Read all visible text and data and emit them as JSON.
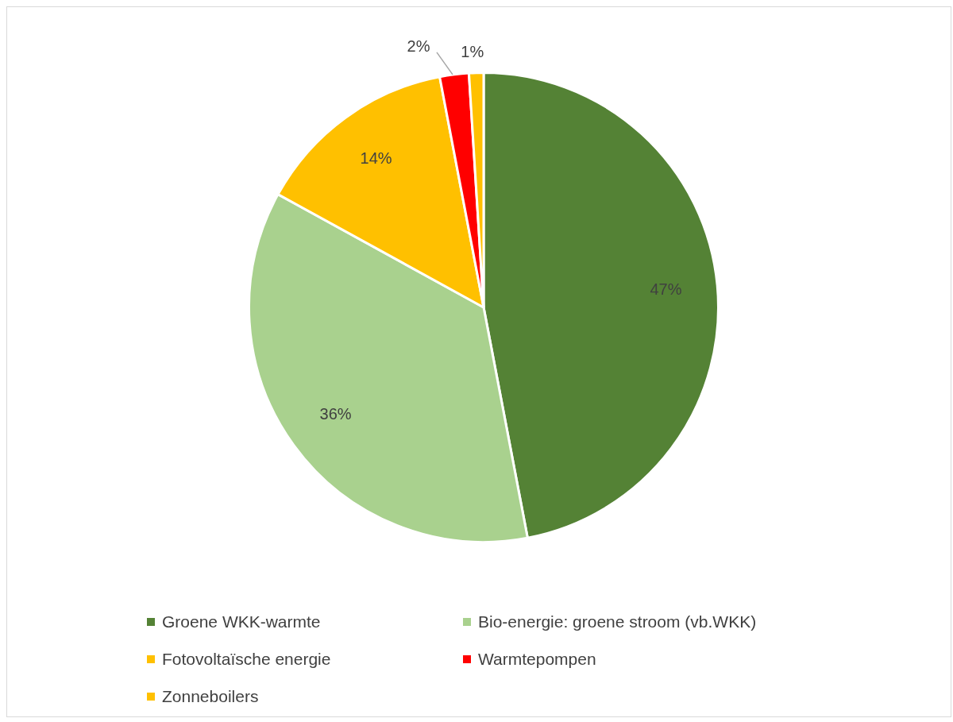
{
  "chart_data": {
    "type": "pie",
    "categories": [
      "Groene WKK-warmte",
      "Bio-energie: groene stroom (vb.WKK)",
      "Fotovoltaïsche energie",
      "Warmtepompen",
      "Zonneboilers"
    ],
    "values": [
      47,
      36,
      14,
      2,
      1
    ],
    "colors": [
      "#548235",
      "#a9d18e",
      "#ffc000",
      "#ff0000",
      "#ffc000"
    ],
    "value_labels": [
      "47%",
      "36%",
      "14%",
      "2%",
      "1%"
    ],
    "legend": "bottom"
  }
}
